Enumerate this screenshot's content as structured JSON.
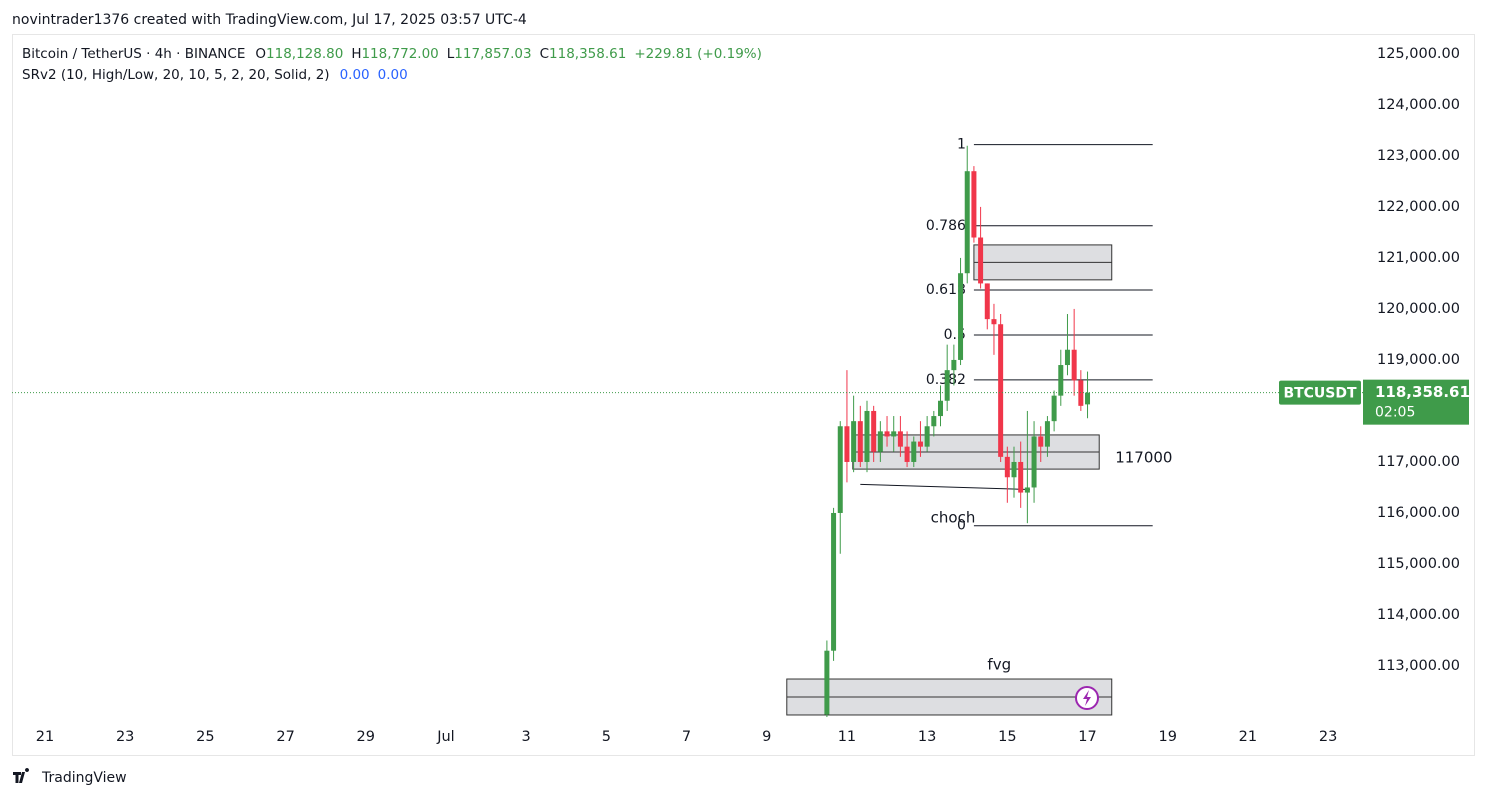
{
  "watermark": "novintrader1376 created with TradingView.com, Jul 17, 2025 03:57 UTC-4",
  "footer": "TradingView",
  "chart_data": {
    "type": "candlestick",
    "title": "Bitcoin / TetherUS · 4h · BINANCE",
    "ohlc_header": [
      {
        "key": "O",
        "value": "118,128.80"
      },
      {
        "key": "H",
        "value": "118,772.00"
      },
      {
        "key": "L",
        "value": "117,857.03"
      },
      {
        "key": "C",
        "value": "118,358.61"
      }
    ],
    "change": "+229.81 (+0.19%)",
    "indicator": {
      "name": "SRv2 (10, High/Low, 20, 10, 5, 2, 20, Solid, 2)",
      "values": [
        "0.00",
        "0.00"
      ]
    },
    "symbol_tag": "BTCUSDT",
    "last_price_label": "118,358.61",
    "countdown": "02:05",
    "up_color": "#3f9b4a",
    "down_color": "#f0364a",
    "x": [
      "2025-07-10T12:00",
      "2025-07-10T16:00",
      "2025-07-10T20:00",
      "2025-07-11T00:00",
      "2025-07-11T04:00",
      "2025-07-11T08:00",
      "2025-07-11T12:00",
      "2025-07-11T16:00",
      "2025-07-11T20:00",
      "2025-07-12T00:00",
      "2025-07-12T04:00",
      "2025-07-12T08:00",
      "2025-07-12T12:00",
      "2025-07-12T16:00",
      "2025-07-12T20:00",
      "2025-07-13T00:00",
      "2025-07-13T04:00",
      "2025-07-13T08:00",
      "2025-07-13T12:00",
      "2025-07-13T16:00",
      "2025-07-13T20:00",
      "2025-07-14T00:00",
      "2025-07-14T04:00",
      "2025-07-14T08:00",
      "2025-07-14T12:00",
      "2025-07-14T16:00",
      "2025-07-14T20:00",
      "2025-07-15T00:00",
      "2025-07-15T04:00",
      "2025-07-15T08:00",
      "2025-07-15T12:00",
      "2025-07-15T16:00",
      "2025-07-15T20:00",
      "2025-07-16T00:00",
      "2025-07-16T04:00",
      "2025-07-16T08:00",
      "2025-07-16T12:00",
      "2025-07-16T16:00",
      "2025-07-16T20:00",
      "2025-07-17T00:00"
    ],
    "open": [
      112050,
      113300,
      116000,
      117700,
      117000,
      117800,
      117000,
      118000,
      117200,
      117600,
      117500,
      117600,
      117300,
      117000,
      117400,
      117300,
      117700,
      117900,
      118200,
      118800,
      119000,
      120700,
      122700,
      121400,
      120500,
      119800,
      119700,
      117100,
      116700,
      117000,
      116400,
      116500,
      117500,
      117300,
      117800,
      118300,
      118900,
      119200,
      118600,
      118128.8
    ],
    "high": [
      113500,
      116100,
      117800,
      118800,
      118300,
      118100,
      118200,
      118100,
      117800,
      117900,
      117900,
      117900,
      117600,
      117500,
      117800,
      117900,
      118000,
      118500,
      119300,
      119300,
      121000,
      123200,
      122800,
      122000,
      120500,
      120100,
      119900,
      117300,
      117300,
      117400,
      118000,
      117800,
      117700,
      117900,
      118400,
      119200,
      119900,
      120000,
      118800,
      118772
    ],
    "low": [
      112000,
      113100,
      115200,
      116600,
      116800,
      116900,
      116800,
      117000,
      117000,
      117300,
      117200,
      117100,
      116900,
      116900,
      117100,
      117200,
      117500,
      117700,
      118000,
      118500,
      118900,
      120500,
      121300,
      120400,
      119600,
      119100,
      117000,
      116200,
      116300,
      116100,
      115800,
      116200,
      117000,
      117100,
      117600,
      118100,
      118700,
      118300,
      118000,
      117857.03
    ],
    "close": [
      113300,
      116000,
      117700,
      117000,
      117800,
      117000,
      118000,
      117200,
      117600,
      117500,
      117600,
      117300,
      117000,
      117400,
      117300,
      117700,
      117900,
      118200,
      118800,
      119000,
      120700,
      122700,
      121400,
      120500,
      119800,
      119700,
      117100,
      116700,
      117000,
      116400,
      116500,
      117500,
      117300,
      117800,
      118300,
      118900,
      119200,
      118600,
      118100,
      118358.61
    ],
    "xlim": [
      "2025-06-20T04:15",
      "2025-07-23T22:05"
    ],
    "xticks": [
      {
        "value": "2025-06-21",
        "label": "21"
      },
      {
        "value": "2025-06-23",
        "label": "23"
      },
      {
        "value": "2025-06-25",
        "label": "25"
      },
      {
        "value": "2025-06-27",
        "label": "27"
      },
      {
        "value": "2025-06-29",
        "label": "29"
      },
      {
        "value": "2025-07-01",
        "label": "Jul"
      },
      {
        "value": "2025-07-03",
        "label": "3"
      },
      {
        "value": "2025-07-05",
        "label": "5"
      },
      {
        "value": "2025-07-07",
        "label": "7"
      },
      {
        "value": "2025-07-09",
        "label": "9"
      },
      {
        "value": "2025-07-11",
        "label": "11"
      },
      {
        "value": "2025-07-13",
        "label": "13"
      },
      {
        "value": "2025-07-15",
        "label": "15"
      },
      {
        "value": "2025-07-17",
        "label": "17"
      },
      {
        "value": "2025-07-19",
        "label": "19"
      },
      {
        "value": "2025-07-21",
        "label": "21"
      },
      {
        "value": "2025-07-23",
        "label": "23"
      }
    ],
    "ylim": [
      112020,
      125370
    ],
    "yticks": [
      {
        "value": 113000,
        "label": "113,000.00"
      },
      {
        "value": 114000,
        "label": "114,000.00"
      },
      {
        "value": 115000,
        "label": "115,000.00"
      },
      {
        "value": 116000,
        "label": "116,000.00"
      },
      {
        "value": 117000,
        "label": "117,000.00"
      },
      {
        "value": 118000,
        "label": "118,000.00"
      },
      {
        "value": 119000,
        "label": "119,000.00"
      },
      {
        "value": 120000,
        "label": "120,000.00"
      },
      {
        "value": 121000,
        "label": "121,000.00"
      },
      {
        "value": 122000,
        "label": "122,000.00"
      },
      {
        "value": 123000,
        "label": "123,000.00"
      },
      {
        "value": 124000,
        "label": "124,000.00"
      },
      {
        "value": 125000,
        "label": "125,000.00"
      }
    ],
    "fib": {
      "x0": "2025-07-14T04:00",
      "x1": "2025-07-18T15:00",
      "levels": [
        {
          "label": "1",
          "price": 123220
        },
        {
          "label": "0.786",
          "price": 121630
        },
        {
          "label": "0.618",
          "price": 120370
        },
        {
          "label": "0.5",
          "price": 119490
        },
        {
          "label": "0.382",
          "price": 118610
        },
        {
          "label": "0",
          "price": 115750
        }
      ]
    },
    "zones": [
      {
        "x0": "2025-07-14T04:00",
        "x1": "2025-07-17T14:30",
        "top": 121255,
        "bottom": 120570
      },
      {
        "x0": "2025-07-11T03:30",
        "x1": "2025-07-17T07:00",
        "top": 117530,
        "bottom": 116860,
        "label": "117000"
      },
      {
        "x0": "2025-07-09T12:00",
        "x1": "2025-07-17T14:30",
        "top": 112745,
        "bottom": 112040,
        "label": "fvg"
      }
    ],
    "choch": {
      "label": "choch",
      "x0": "2025-07-11T08:00",
      "y0": 116560,
      "x1": "2025-07-15T13:30",
      "y1": 116460
    }
  }
}
